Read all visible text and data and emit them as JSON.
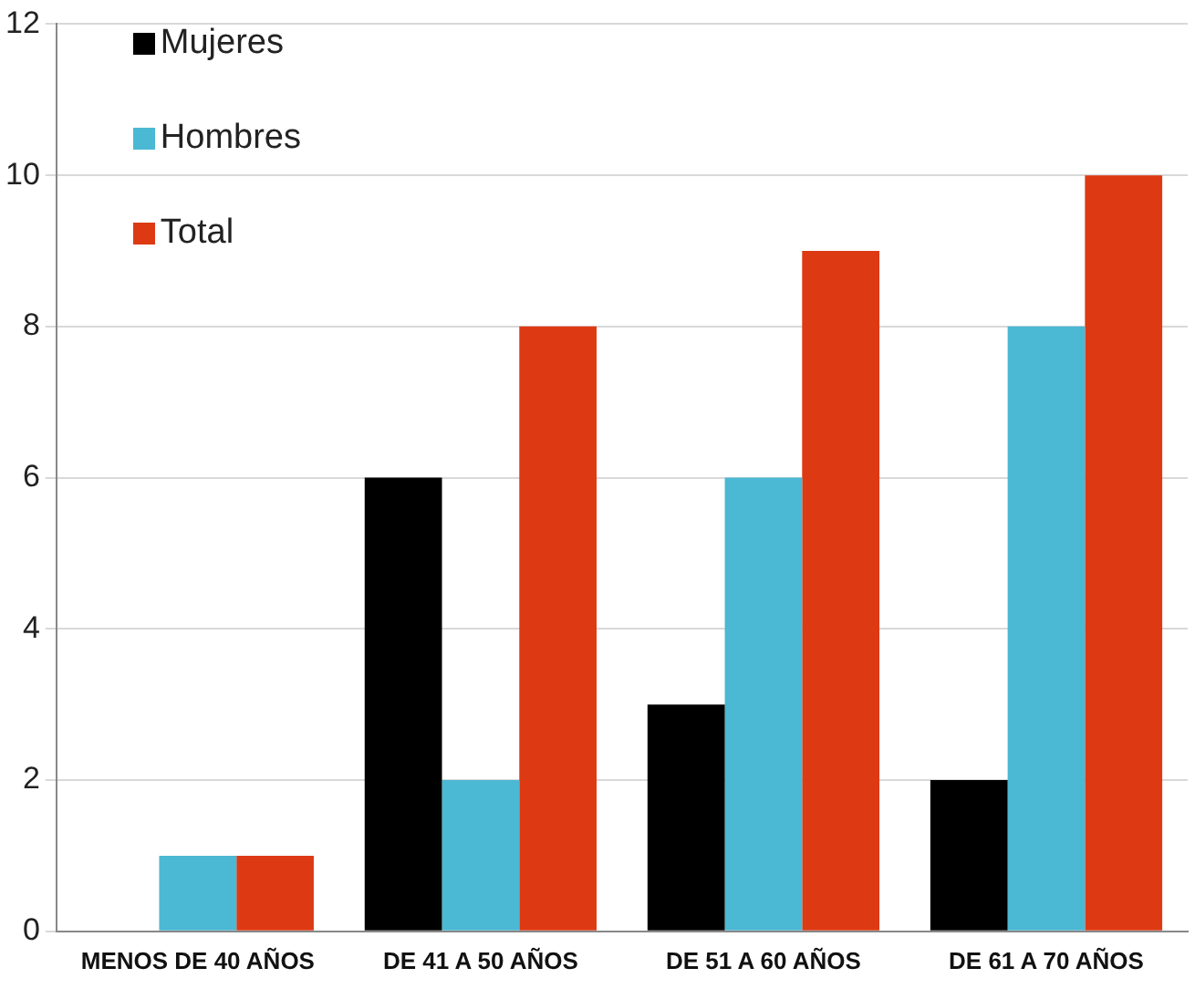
{
  "chart_data": {
    "type": "bar",
    "categories": [
      "MENOS DE 40 AÑOS",
      "DE 41 A 50 AÑOS",
      "DE 51 A 60 AÑOS",
      "DE 61 A 70 AÑOS"
    ],
    "series": [
      {
        "name": "Mujeres",
        "color": "#000000",
        "values": [
          0,
          6,
          3,
          2
        ]
      },
      {
        "name": "Hombres",
        "color": "#4bb8d4",
        "values": [
          1,
          2,
          6,
          8
        ]
      },
      {
        "name": "Total",
        "color": "#dd3a14",
        "values": [
          1,
          8,
          9,
          10
        ]
      }
    ],
    "ylim": [
      0,
      12
    ],
    "yticks": [
      0,
      2,
      4,
      6,
      8,
      10,
      12
    ],
    "grid": "y",
    "legend": "top left"
  }
}
